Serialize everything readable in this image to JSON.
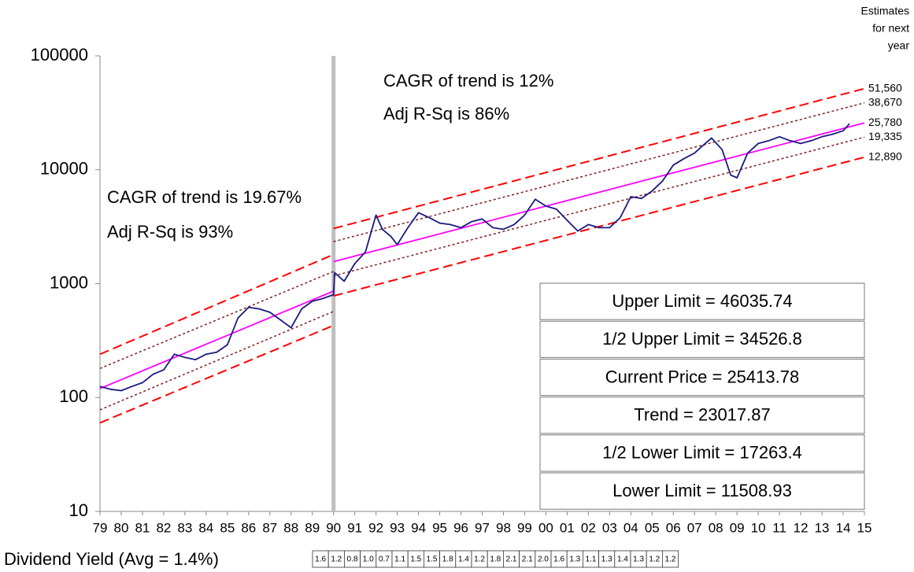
{
  "chart_data": {
    "type": "line",
    "log_scale": true,
    "xlim": [
      1979,
      2015
    ],
    "xticks": [
      {
        "value": 1979,
        "label": "79"
      },
      {
        "value": 1980,
        "label": "80"
      },
      {
        "value": 1981,
        "label": "81"
      },
      {
        "value": 1982,
        "label": "82"
      },
      {
        "value": 1983,
        "label": "83"
      },
      {
        "value": 1984,
        "label": "84"
      },
      {
        "value": 1985,
        "label": "85"
      },
      {
        "value": 1986,
        "label": "86"
      },
      {
        "value": 1987,
        "label": "87"
      },
      {
        "value": 1988,
        "label": "88"
      },
      {
        "value": 1989,
        "label": "89"
      },
      {
        "value": 1990,
        "label": "90"
      },
      {
        "value": 1991,
        "label": "91"
      },
      {
        "value": 1992,
        "label": "92"
      },
      {
        "value": 1993,
        "label": "93"
      },
      {
        "value": 1994,
        "label": "94"
      },
      {
        "value": 1995,
        "label": "95"
      },
      {
        "value": 1996,
        "label": "96"
      },
      {
        "value": 1997,
        "label": "97"
      },
      {
        "value": 1998,
        "label": "98"
      },
      {
        "value": 1999,
        "label": "99"
      },
      {
        "value": 2000,
        "label": "00"
      },
      {
        "value": 2001,
        "label": "01"
      },
      {
        "value": 2002,
        "label": "02"
      },
      {
        "value": 2003,
        "label": "03"
      },
      {
        "value": 2004,
        "label": "04"
      },
      {
        "value": 2005,
        "label": "05"
      },
      {
        "value": 2006,
        "label": "06"
      },
      {
        "value": 2007,
        "label": "07"
      },
      {
        "value": 2008,
        "label": "08"
      },
      {
        "value": 2009,
        "label": "09"
      },
      {
        "value": 2010,
        "label": "10"
      },
      {
        "value": 2011,
        "label": "11"
      },
      {
        "value": 2012,
        "label": "12"
      },
      {
        "value": 2013,
        "label": "13"
      },
      {
        "value": 2014,
        "label": "14"
      },
      {
        "value": 2015,
        "label": "15"
      }
    ],
    "ylim": [
      10,
      100000
    ],
    "yticks": [
      10,
      100,
      1000,
      10000,
      100000
    ],
    "divider": {
      "x": 1990,
      "color": "#bfbfbf"
    },
    "series": [
      {
        "color": "#ff0000",
        "style": "dashed",
        "x": [
          1979,
          1990
        ],
        "values": [
          240,
          1800
        ]
      },
      {
        "color": "#7f1f1f",
        "style": "dotted",
        "x": [
          1979,
          1990
        ],
        "values": [
          180,
          1280
        ]
      },
      {
        "color": "#ff00ff",
        "style": "solid",
        "x": [
          1979,
          1990
        ],
        "values": [
          120,
          860
        ]
      },
      {
        "color": "#7f1f1f",
        "style": "dotted",
        "x": [
          1979,
          1990
        ],
        "values": [
          78,
          570
        ]
      },
      {
        "color": "#ff0000",
        "style": "dashed",
        "x": [
          1979,
          1990
        ],
        "values": [
          60,
          430
        ]
      },
      {
        "color": "#ff0000",
        "style": "dashed",
        "x": [
          1990,
          2015
        ],
        "values": [
          3050,
          51560
        ]
      },
      {
        "color": "#7f1f1f",
        "style": "dotted",
        "x": [
          1990,
          2015
        ],
        "values": [
          2340,
          38670
        ]
      },
      {
        "color": "#ff00ff",
        "style": "solid",
        "x": [
          1990,
          2015
        ],
        "values": [
          1560,
          25780
        ]
      },
      {
        "color": "#7f1f1f",
        "style": "dotted",
        "x": [
          1990,
          2015
        ],
        "values": [
          1170,
          19335
        ]
      },
      {
        "color": "#ff0000",
        "style": "dashed",
        "x": [
          1990,
          2015
        ],
        "values": [
          780,
          12890
        ]
      },
      {
        "color": "#1a1a80",
        "style": "solid",
        "x": [
          1979,
          1979.5,
          1980,
          1980.5,
          1981,
          1981.5,
          1982,
          1982.5,
          1983,
          1983.5,
          1984,
          1984.5,
          1985,
          1985.5,
          1986,
          1986.5,
          1987,
          1987.5,
          1988,
          1988.5,
          1989,
          1989.5,
          1990,
          1990.05,
          1990.5,
          1991,
          1991.5,
          1992,
          1992.3,
          1992.7,
          1993,
          1993.5,
          1994,
          1994.5,
          1995,
          1995.5,
          1996,
          1996.5,
          1997,
          1997.5,
          1998,
          1998.5,
          1999,
          1999.5,
          2000,
          2000.5,
          2001,
          2001.5,
          2002,
          2002.5,
          2003,
          2003.5,
          2004,
          2004.5,
          2005,
          2005.5,
          2006,
          2006.5,
          2007,
          2007.5,
          2007.8,
          2008.3,
          2008.7,
          2009,
          2009.5,
          2010,
          2010.5,
          2011,
          2011.5,
          2012,
          2012.5,
          2013,
          2013.5,
          2014,
          2014.3
        ],
        "values": [
          125,
          118,
          115,
          125,
          135,
          160,
          175,
          240,
          225,
          215,
          240,
          250,
          290,
          500,
          620,
          600,
          560,
          480,
          410,
          600,
          700,
          740,
          800,
          1250,
          1050,
          1500,
          1900,
          4000,
          3000,
          2600,
          2200,
          3100,
          4200,
          3800,
          3400,
          3300,
          3100,
          3500,
          3700,
          3100,
          3000,
          3300,
          4000,
          5500,
          4800,
          4500,
          3600,
          2900,
          3300,
          3100,
          3100,
          3800,
          5800,
          5600,
          6500,
          8000,
          11000,
          12500,
          14000,
          17000,
          19000,
          15000,
          9000,
          8500,
          14000,
          17000,
          18000,
          19500,
          18000,
          17000,
          18000,
          19500,
          20500,
          22000,
          25400
        ]
      }
    ],
    "estimates_title": [
      "Estimates",
      "for next",
      "year"
    ],
    "end_labels": [
      {
        "value": 51560,
        "label": "51,560"
      },
      {
        "value": 38670,
        "label": "38,670"
      },
      {
        "value": 25780,
        "label": "25,780"
      },
      {
        "value": 19335,
        "label": "19,335"
      },
      {
        "value": 12890,
        "label": "12,890"
      }
    ],
    "annotations": [
      "CAGR of trend is 12%",
      "Adj R-Sq is 86%",
      "CAGR of trend is 19.67%",
      "Adj R-Sq is 93%"
    ],
    "summary_boxes": [
      "Upper Limit = 46035.74",
      "1/2 Upper Limit = 34526.8",
      "Current Price = 25413.78",
      "Trend = 23017.87",
      "1/2 Lower Limit = 17263.4",
      "Lower Limit = 11508.93"
    ],
    "dividend_label": "Dividend Yield (Avg = 1.4%)",
    "dividend_yields": [
      "1.6",
      "1.2",
      "0.8",
      "1.0",
      "0.7",
      "1.1",
      "1.5",
      "1.5",
      "1.8",
      "1.4",
      "1.2",
      "1.8",
      "2.1",
      "2.1",
      "2.0",
      "1.6",
      "1.3",
      "1.1",
      "1.3",
      "1.4",
      "1.3",
      "1.2",
      "1.2"
    ]
  }
}
